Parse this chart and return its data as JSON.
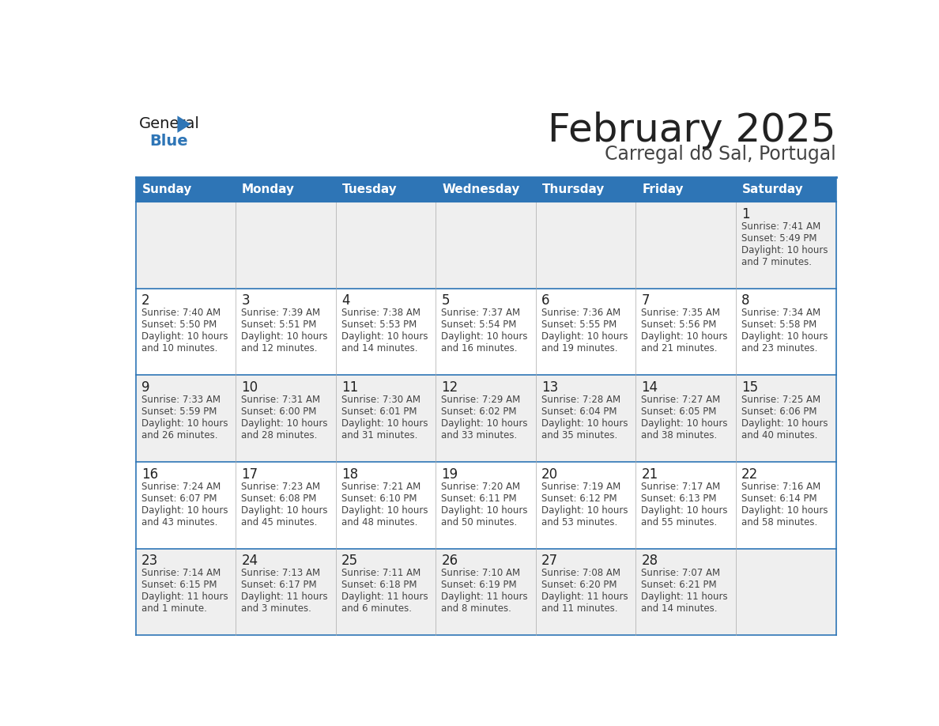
{
  "title": "February 2025",
  "subtitle": "Carregal do Sal, Portugal",
  "header_bg": "#2E75B6",
  "header_text_color": "#FFFFFF",
  "cell_bg_odd": "#EFEFEF",
  "cell_bg_even": "#FFFFFF",
  "cell_bg_empty": "#EFEFEF",
  "grid_line_color": "#2E75B6",
  "day_headers": [
    "Sunday",
    "Monday",
    "Tuesday",
    "Wednesday",
    "Thursday",
    "Friday",
    "Saturday"
  ],
  "title_color": "#222222",
  "subtitle_color": "#444444",
  "day_num_color": "#222222",
  "cell_text_color": "#444444",
  "logo_general_color": "#1A1A1A",
  "logo_blue_color": "#2E75B6",
  "calendar_data": [
    [
      null,
      null,
      null,
      null,
      null,
      null,
      {
        "day": "1",
        "sunrise": "7:41 AM",
        "sunset": "5:49 PM",
        "daylight_line1": "Daylight: 10 hours",
        "daylight_line2": "and 7 minutes."
      }
    ],
    [
      {
        "day": "2",
        "sunrise": "7:40 AM",
        "sunset": "5:50 PM",
        "daylight_line1": "Daylight: 10 hours",
        "daylight_line2": "and 10 minutes."
      },
      {
        "day": "3",
        "sunrise": "7:39 AM",
        "sunset": "5:51 PM",
        "daylight_line1": "Daylight: 10 hours",
        "daylight_line2": "and 12 minutes."
      },
      {
        "day": "4",
        "sunrise": "7:38 AM",
        "sunset": "5:53 PM",
        "daylight_line1": "Daylight: 10 hours",
        "daylight_line2": "and 14 minutes."
      },
      {
        "day": "5",
        "sunrise": "7:37 AM",
        "sunset": "5:54 PM",
        "daylight_line1": "Daylight: 10 hours",
        "daylight_line2": "and 16 minutes."
      },
      {
        "day": "6",
        "sunrise": "7:36 AM",
        "sunset": "5:55 PM",
        "daylight_line1": "Daylight: 10 hours",
        "daylight_line2": "and 19 minutes."
      },
      {
        "day": "7",
        "sunrise": "7:35 AM",
        "sunset": "5:56 PM",
        "daylight_line1": "Daylight: 10 hours",
        "daylight_line2": "and 21 minutes."
      },
      {
        "day": "8",
        "sunrise": "7:34 AM",
        "sunset": "5:58 PM",
        "daylight_line1": "Daylight: 10 hours",
        "daylight_line2": "and 23 minutes."
      }
    ],
    [
      {
        "day": "9",
        "sunrise": "7:33 AM",
        "sunset": "5:59 PM",
        "daylight_line1": "Daylight: 10 hours",
        "daylight_line2": "and 26 minutes."
      },
      {
        "day": "10",
        "sunrise": "7:31 AM",
        "sunset": "6:00 PM",
        "daylight_line1": "Daylight: 10 hours",
        "daylight_line2": "and 28 minutes."
      },
      {
        "day": "11",
        "sunrise": "7:30 AM",
        "sunset": "6:01 PM",
        "daylight_line1": "Daylight: 10 hours",
        "daylight_line2": "and 31 minutes."
      },
      {
        "day": "12",
        "sunrise": "7:29 AM",
        "sunset": "6:02 PM",
        "daylight_line1": "Daylight: 10 hours",
        "daylight_line2": "and 33 minutes."
      },
      {
        "day": "13",
        "sunrise": "7:28 AM",
        "sunset": "6:04 PM",
        "daylight_line1": "Daylight: 10 hours",
        "daylight_line2": "and 35 minutes."
      },
      {
        "day": "14",
        "sunrise": "7:27 AM",
        "sunset": "6:05 PM",
        "daylight_line1": "Daylight: 10 hours",
        "daylight_line2": "and 38 minutes."
      },
      {
        "day": "15",
        "sunrise": "7:25 AM",
        "sunset": "6:06 PM",
        "daylight_line1": "Daylight: 10 hours",
        "daylight_line2": "and 40 minutes."
      }
    ],
    [
      {
        "day": "16",
        "sunrise": "7:24 AM",
        "sunset": "6:07 PM",
        "daylight_line1": "Daylight: 10 hours",
        "daylight_line2": "and 43 minutes."
      },
      {
        "day": "17",
        "sunrise": "7:23 AM",
        "sunset": "6:08 PM",
        "daylight_line1": "Daylight: 10 hours",
        "daylight_line2": "and 45 minutes."
      },
      {
        "day": "18",
        "sunrise": "7:21 AM",
        "sunset": "6:10 PM",
        "daylight_line1": "Daylight: 10 hours",
        "daylight_line2": "and 48 minutes."
      },
      {
        "day": "19",
        "sunrise": "7:20 AM",
        "sunset": "6:11 PM",
        "daylight_line1": "Daylight: 10 hours",
        "daylight_line2": "and 50 minutes."
      },
      {
        "day": "20",
        "sunrise": "7:19 AM",
        "sunset": "6:12 PM",
        "daylight_line1": "Daylight: 10 hours",
        "daylight_line2": "and 53 minutes."
      },
      {
        "day": "21",
        "sunrise": "7:17 AM",
        "sunset": "6:13 PM",
        "daylight_line1": "Daylight: 10 hours",
        "daylight_line2": "and 55 minutes."
      },
      {
        "day": "22",
        "sunrise": "7:16 AM",
        "sunset": "6:14 PM",
        "daylight_line1": "Daylight: 10 hours",
        "daylight_line2": "and 58 minutes."
      }
    ],
    [
      {
        "day": "23",
        "sunrise": "7:14 AM",
        "sunset": "6:15 PM",
        "daylight_line1": "Daylight: 11 hours",
        "daylight_line2": "and 1 minute."
      },
      {
        "day": "24",
        "sunrise": "7:13 AM",
        "sunset": "6:17 PM",
        "daylight_line1": "Daylight: 11 hours",
        "daylight_line2": "and 3 minutes."
      },
      {
        "day": "25",
        "sunrise": "7:11 AM",
        "sunset": "6:18 PM",
        "daylight_line1": "Daylight: 11 hours",
        "daylight_line2": "and 6 minutes."
      },
      {
        "day": "26",
        "sunrise": "7:10 AM",
        "sunset": "6:19 PM",
        "daylight_line1": "Daylight: 11 hours",
        "daylight_line2": "and 8 minutes."
      },
      {
        "day": "27",
        "sunrise": "7:08 AM",
        "sunset": "6:20 PM",
        "daylight_line1": "Daylight: 11 hours",
        "daylight_line2": "and 11 minutes."
      },
      {
        "day": "28",
        "sunrise": "7:07 AM",
        "sunset": "6:21 PM",
        "daylight_line1": "Daylight: 11 hours",
        "daylight_line2": "and 14 minutes."
      },
      null
    ]
  ]
}
